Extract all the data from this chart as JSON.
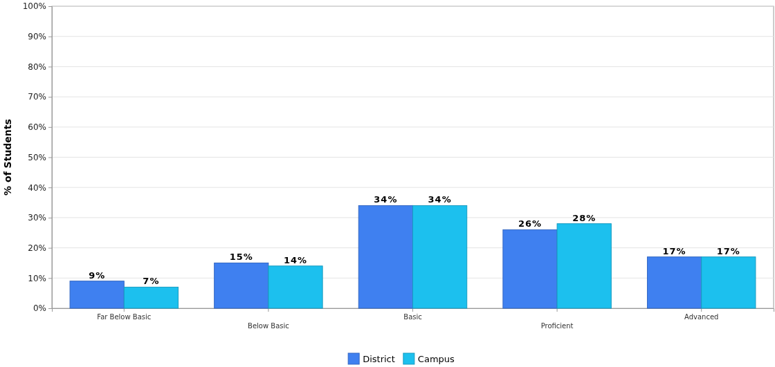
{
  "chart_data": {
    "type": "bar",
    "ylabel": "% of Students",
    "categories": [
      "Far Below Basic",
      "Below Basic",
      "Basic",
      "Proficient",
      "Advanced"
    ],
    "series": [
      {
        "name": "District",
        "color": "#3f80f0",
        "values": [
          9,
          15,
          34,
          26,
          17
        ],
        "value_labels": [
          "9%",
          "15%",
          "34%",
          "26%",
          "17%"
        ]
      },
      {
        "name": "Campus",
        "color": "#1cc0ee",
        "values": [
          7,
          14,
          34,
          28,
          17
        ],
        "value_labels": [
          "7%",
          "14%",
          "34%",
          "28%",
          "17%"
        ]
      }
    ],
    "ylim": [
      0,
      100
    ],
    "yticks": [
      {
        "value": 0,
        "label": "0%"
      },
      {
        "value": 10,
        "label": "10%"
      },
      {
        "value": 20,
        "label": "20%"
      },
      {
        "value": 30,
        "label": "30%"
      },
      {
        "value": 40,
        "label": "40%"
      },
      {
        "value": 50,
        "label": "50%"
      },
      {
        "value": 60,
        "label": "60%"
      },
      {
        "value": 70,
        "label": "70%"
      },
      {
        "value": 80,
        "label": "80%"
      },
      {
        "value": 90,
        "label": "90%"
      },
      {
        "value": 100,
        "label": "100%"
      }
    ],
    "grid": "y",
    "legend": "bottom"
  }
}
